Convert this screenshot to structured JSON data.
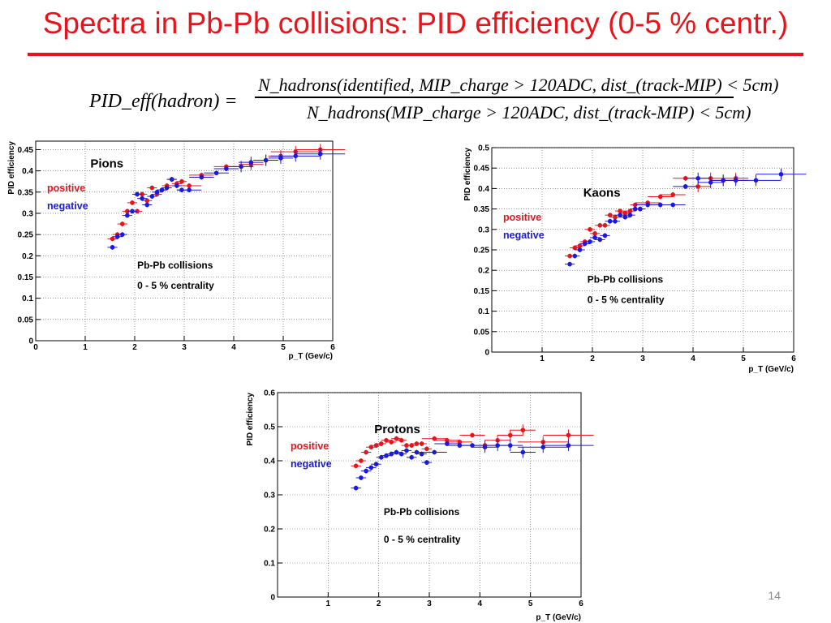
{
  "slide": {
    "title": "Spectra in Pb-Pb collisions: PID efficiency (0-5 % centr.)",
    "page_number": "14",
    "accent_color": "#e8141b"
  },
  "formula": {
    "lhs": "PID_eff(hadron) =",
    "numerator": "N_hadrons(identified, MIP_charge > 120ADC, dist_(track-MIP) < 5cm)",
    "denominator": "N_hadrons(MIP_charge > 120ADC, dist_(track-MIP) < 5cm)"
  },
  "chart_data": [
    {
      "type": "scatter",
      "title": "Pions",
      "xlabel": "p_T (Gev/c)",
      "ylabel": "PID efficiency",
      "xlim": [
        0,
        6
      ],
      "ylim": [
        0,
        0.47
      ],
      "xticks": [
        0,
        1,
        2,
        3,
        4,
        5,
        6
      ],
      "yticks": [
        0,
        0.05,
        0.1,
        0.15,
        0.2,
        0.25,
        0.3,
        0.35,
        0.4,
        0.45
      ],
      "grid": true,
      "annotations": [
        "Pb-Pb collisions",
        "0 - 5 % centrality"
      ],
      "series": [
        {
          "name": "positive",
          "color": "#e8141b",
          "x": [
            1.55,
            1.65,
            1.75,
            1.85,
            1.95,
            2.05,
            2.15,
            2.25,
            2.35,
            2.45,
            2.55,
            2.65,
            2.75,
            2.85,
            2.95,
            3.1,
            3.35,
            3.85,
            4.35,
            4.65,
            4.95,
            5.25,
            5.75
          ],
          "y": [
            0.24,
            0.25,
            0.275,
            0.305,
            0.325,
            0.305,
            0.345,
            0.33,
            0.36,
            0.345,
            0.355,
            0.365,
            0.38,
            0.37,
            0.375,
            0.365,
            0.39,
            0.41,
            0.415,
            0.425,
            0.435,
            0.445,
            0.45
          ]
        },
        {
          "name": "negative",
          "color": "#1a1adb",
          "x": [
            1.55,
            1.65,
            1.75,
            1.85,
            1.95,
            2.05,
            2.15,
            2.25,
            2.35,
            2.45,
            2.55,
            2.65,
            2.75,
            2.85,
            2.95,
            3.1,
            3.35,
            3.65,
            3.85,
            4.15,
            4.35,
            4.65,
            4.95,
            5.25,
            5.75
          ],
          "y": [
            0.22,
            0.245,
            0.25,
            0.295,
            0.305,
            0.345,
            0.335,
            0.32,
            0.34,
            0.35,
            0.355,
            0.36,
            0.38,
            0.365,
            0.355,
            0.355,
            0.385,
            0.395,
            0.405,
            0.41,
            0.42,
            0.425,
            0.43,
            0.435,
            0.44
          ]
        }
      ]
    },
    {
      "type": "scatter",
      "title": "Kaons",
      "xlabel": "p_T (GeV/c)",
      "ylabel": "PID efficiency",
      "xlim": [
        0,
        6
      ],
      "ylim": [
        0,
        0.5
      ],
      "xticks": [
        1,
        2,
        3,
        4,
        5,
        6
      ],
      "yticks": [
        0,
        0.05,
        0.1,
        0.15,
        0.2,
        0.25,
        0.3,
        0.35,
        0.4,
        0.45,
        0.5
      ],
      "grid": true,
      "annotations": [
        "Pb-Pb collisions",
        "0 - 5 % centrality"
      ],
      "series": [
        {
          "name": "positive",
          "color": "#e8141b",
          "x": [
            1.55,
            1.65,
            1.75,
            1.85,
            1.95,
            2.05,
            2.15,
            2.25,
            2.35,
            2.45,
            2.55,
            2.65,
            2.75,
            2.85,
            2.95,
            3.1,
            3.35,
            3.6,
            3.85,
            4.1,
            4.35,
            4.6,
            4.85
          ],
          "y": [
            0.235,
            0.255,
            0.26,
            0.27,
            0.3,
            0.29,
            0.31,
            0.31,
            0.335,
            0.33,
            0.345,
            0.34,
            0.345,
            0.36,
            0.35,
            0.365,
            0.38,
            0.385,
            0.425,
            0.405,
            0.425,
            0.42,
            0.425
          ]
        },
        {
          "name": "negative",
          "color": "#1a1adb",
          "x": [
            1.55,
            1.65,
            1.75,
            1.85,
            1.95,
            2.05,
            2.15,
            2.25,
            2.35,
            2.45,
            2.55,
            2.65,
            2.75,
            2.85,
            2.95,
            3.1,
            3.35,
            3.6,
            3.85,
            4.1,
            4.35,
            4.6,
            4.85,
            5.25,
            5.75
          ],
          "y": [
            0.215,
            0.235,
            0.25,
            0.265,
            0.27,
            0.28,
            0.275,
            0.285,
            0.32,
            0.32,
            0.335,
            0.33,
            0.335,
            0.35,
            0.35,
            0.36,
            0.36,
            0.36,
            0.405,
            0.425,
            0.415,
            0.42,
            0.42,
            0.42,
            0.435
          ]
        }
      ]
    },
    {
      "type": "scatter",
      "title": "Protons",
      "xlabel": "p_T (GeV/c)",
      "ylabel": "PID efficiency",
      "xlim": [
        0,
        6
      ],
      "ylim": [
        0,
        0.6
      ],
      "xticks": [
        1,
        2,
        3,
        4,
        5,
        6
      ],
      "yticks": [
        0,
        0.1,
        0.2,
        0.3,
        0.4,
        0.5,
        0.6
      ],
      "grid": true,
      "annotations": [
        "Pb-Pb collisions",
        "0 - 5 % centrality"
      ],
      "series": [
        {
          "name": "positive",
          "color": "#e8141b",
          "x": [
            1.55,
            1.65,
            1.75,
            1.85,
            1.95,
            2.05,
            2.15,
            2.25,
            2.35,
            2.45,
            2.55,
            2.65,
            2.75,
            2.85,
            2.95,
            3.1,
            3.35,
            3.6,
            3.85,
            4.1,
            4.35,
            4.6,
            4.85,
            5.25,
            5.75
          ],
          "y": [
            0.385,
            0.4,
            0.425,
            0.44,
            0.445,
            0.45,
            0.46,
            0.455,
            0.465,
            0.46,
            0.445,
            0.445,
            0.45,
            0.45,
            0.435,
            0.465,
            0.46,
            0.455,
            0.475,
            0.445,
            0.46,
            0.475,
            0.49,
            0.455,
            0.475
          ]
        },
        {
          "name": "negative",
          "color": "#1a1adb",
          "x": [
            1.55,
            1.65,
            1.75,
            1.85,
            1.95,
            2.05,
            2.15,
            2.25,
            2.35,
            2.45,
            2.55,
            2.65,
            2.75,
            2.85,
            2.95,
            3.1,
            3.35,
            3.6,
            3.85,
            4.1,
            4.35,
            4.6,
            4.85,
            5.25,
            5.75
          ],
          "y": [
            0.32,
            0.35,
            0.37,
            0.38,
            0.39,
            0.41,
            0.415,
            0.42,
            0.425,
            0.42,
            0.43,
            0.41,
            0.425,
            0.42,
            0.395,
            0.425,
            0.45,
            0.445,
            0.445,
            0.44,
            0.445,
            0.445,
            0.425,
            0.44,
            0.445
          ]
        }
      ]
    }
  ]
}
